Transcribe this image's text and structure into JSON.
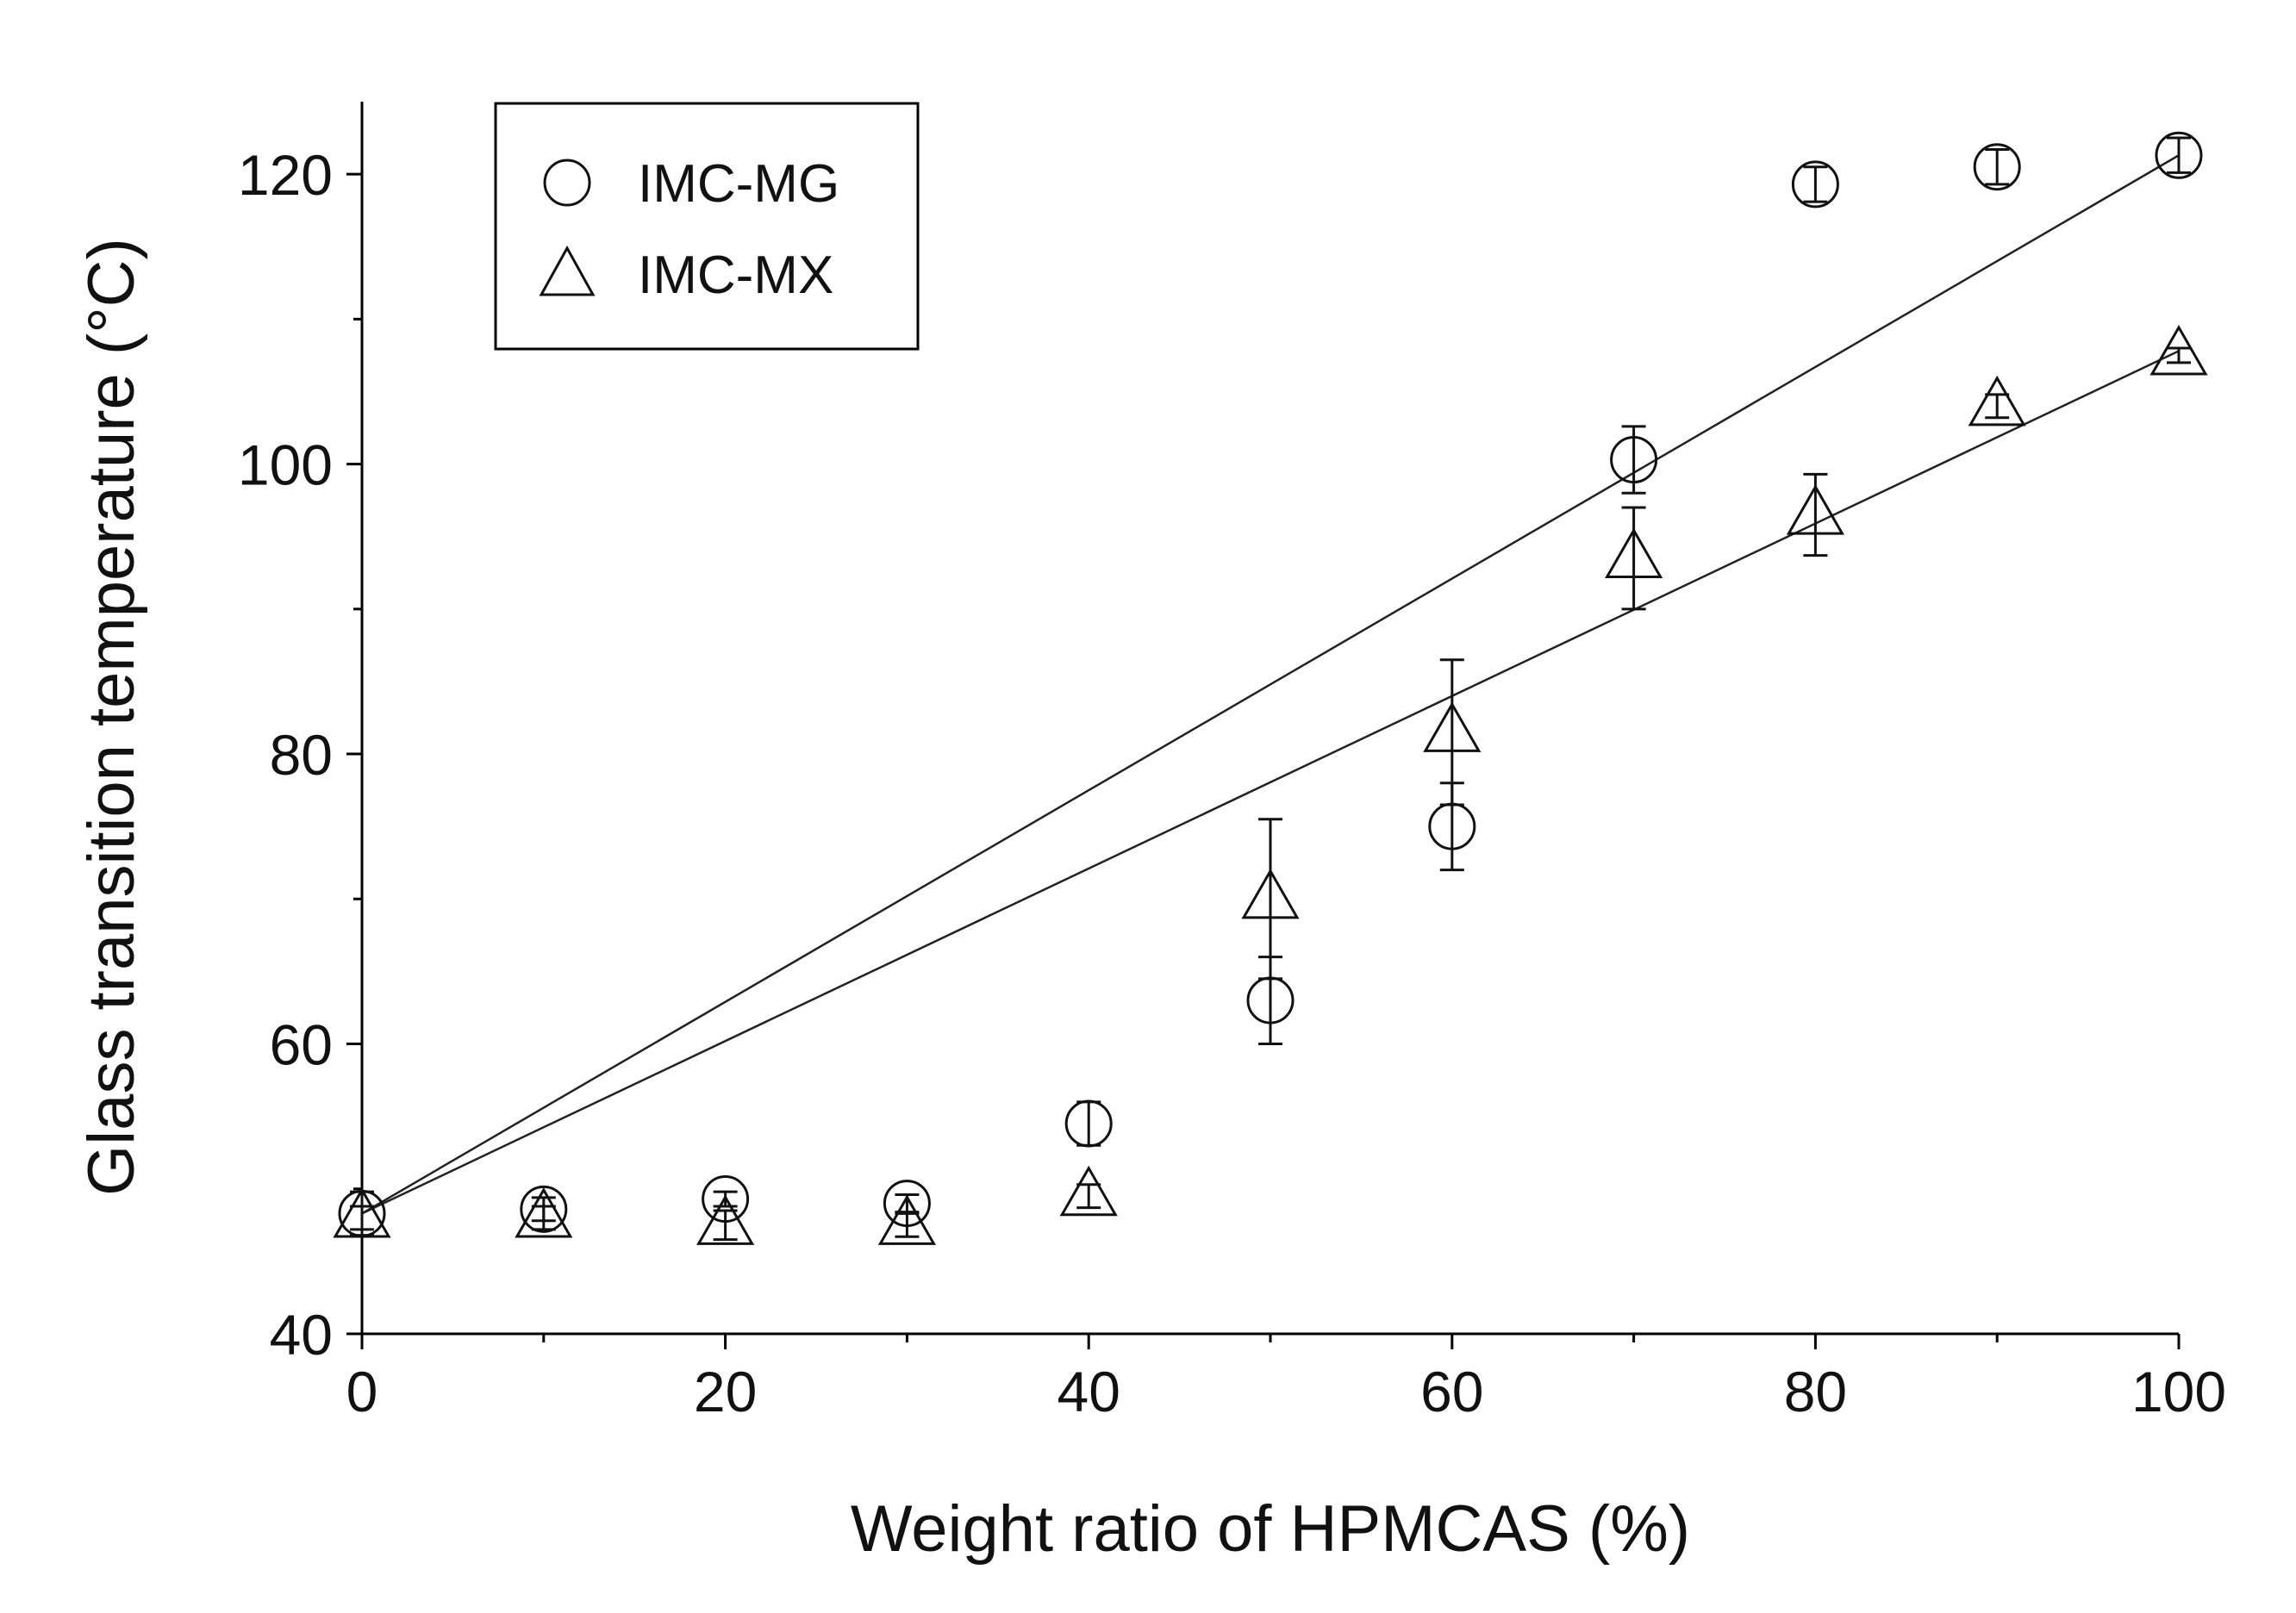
{
  "chart_data": {
    "type": "scatter",
    "title": "",
    "xlabel": "Weight ratio of HPMCAS  (%)",
    "ylabel": "Glass transition temperature (°C)",
    "xlim": [
      0,
      100
    ],
    "ylim": [
      40,
      125
    ],
    "x_ticks": [
      "0",
      "20",
      "40",
      "60",
      "80",
      "100"
    ],
    "y_ticks": [
      "40",
      "60",
      "80",
      "100",
      "120"
    ],
    "x_minor_ticks": [
      10,
      30,
      50,
      70,
      90
    ],
    "y_minor_ticks": [
      50,
      70,
      90,
      110
    ],
    "legend_position": "top-left",
    "x": [
      0,
      10,
      20,
      30,
      40,
      50,
      60,
      70,
      80,
      90,
      100
    ],
    "series": [
      {
        "name": "IMC-MG",
        "marker": "circle",
        "values": [
          48.3,
          48.6,
          49.3,
          49.0,
          54.5,
          63.0,
          75.0,
          100.3,
          119.3,
          120.5,
          121.3
        ],
        "errors": [
          1.5,
          0.8,
          0.5,
          0.6,
          1.5,
          3.0,
          3.0,
          2.3,
          1.2,
          1.2,
          1.2
        ]
      },
      {
        "name": "IMC-MX",
        "marker": "triangle",
        "values": [
          48.0,
          48.0,
          47.5,
          47.5,
          49.5,
          70.0,
          81.5,
          93.5,
          96.5,
          104.0,
          107.5
        ],
        "errors": [
          0.8,
          0.8,
          1.0,
          0.8,
          0.8,
          5.5,
          5.0,
          3.5,
          2.8,
          0.8,
          0.5
        ]
      }
    ],
    "fit_lines": [
      {
        "name": "IMC-MG fit",
        "x": [
          0,
          100
        ],
        "y": [
          48.3,
          121.3
        ]
      },
      {
        "name": "IMC-MX fit",
        "x": [
          0,
          100
        ],
        "y": [
          48.3,
          107.8
        ]
      }
    ]
  }
}
